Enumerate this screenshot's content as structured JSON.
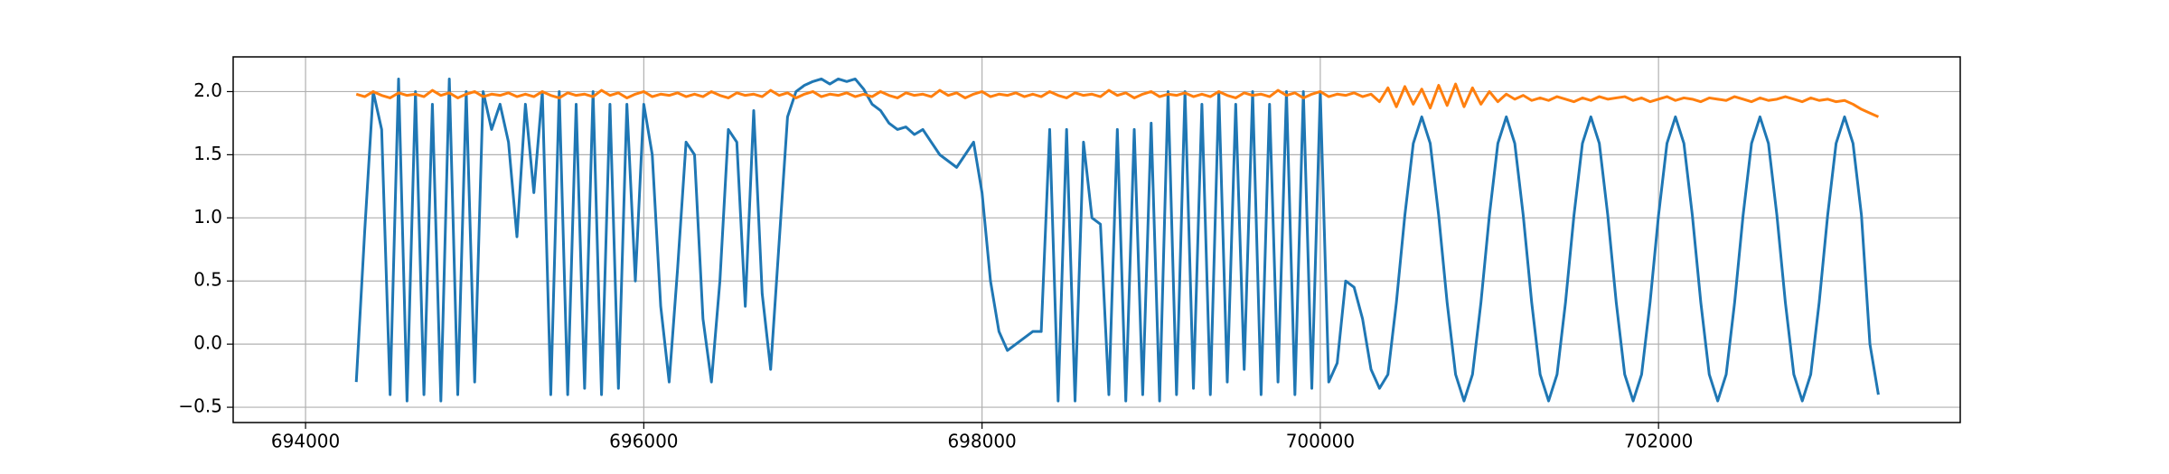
{
  "chart_data": {
    "type": "line",
    "x": [
      694300,
      694350,
      694400,
      694450,
      694500,
      694550,
      694600,
      694650,
      694700,
      694750,
      694800,
      694850,
      694900,
      694950,
      695000,
      695050,
      695100,
      695150,
      695200,
      695250,
      695300,
      695350,
      695400,
      695450,
      695500,
      695550,
      695600,
      695650,
      695700,
      695750,
      695800,
      695850,
      695900,
      695950,
      696000,
      696050,
      696100,
      696150,
      696200,
      696250,
      696300,
      696350,
      696400,
      696450,
      696500,
      696550,
      696600,
      696650,
      696700,
      696750,
      696800,
      696850,
      696900,
      696950,
      697000,
      697050,
      697100,
      697150,
      697200,
      697250,
      697300,
      697350,
      697400,
      697450,
      697500,
      697550,
      697600,
      697650,
      697700,
      697750,
      697800,
      697850,
      697900,
      697950,
      698000,
      698050,
      698100,
      698150,
      698200,
      698250,
      698300,
      698350,
      698400,
      698450,
      698500,
      698550,
      698600,
      698650,
      698700,
      698750,
      698800,
      698850,
      698900,
      698950,
      699000,
      699050,
      699100,
      699150,
      699200,
      699250,
      699300,
      699350,
      699400,
      699450,
      699500,
      699550,
      699600,
      699650,
      699700,
      699750,
      699800,
      699850,
      699900,
      699950,
      700000,
      700050,
      700100,
      700150,
      700200,
      700250,
      700300,
      700350,
      700400,
      700450,
      700500,
      700550,
      700600,
      700650,
      700700,
      700750,
      700800,
      700850,
      700900,
      700950,
      701000,
      701050,
      701100,
      701150,
      701200,
      701250,
      701300,
      701350,
      701400,
      701450,
      701500,
      701550,
      701600,
      701650,
      701700,
      701750,
      701800,
      701850,
      701900,
      701950,
      702000,
      702050,
      702100,
      702150,
      702200,
      702250,
      702300,
      702350,
      702400,
      702450,
      702500,
      702550,
      702600,
      702650,
      702700,
      702750,
      702800,
      702850,
      702900,
      702950,
      703000,
      703050,
      703100,
      703150,
      703200,
      703250,
      703300
    ],
    "series": [
      {
        "color": "#1f77b4",
        "values": [
          -0.3,
          0.9,
          2.0,
          1.7,
          -0.4,
          2.1,
          -0.45,
          2.0,
          -0.4,
          1.9,
          -0.45,
          2.1,
          -0.4,
          2.0,
          -0.3,
          2.0,
          1.7,
          1.9,
          1.6,
          0.85,
          1.9,
          1.2,
          2.0,
          -0.4,
          2.0,
          -0.4,
          1.9,
          -0.35,
          2.0,
          -0.4,
          1.9,
          -0.35,
          1.9,
          0.5,
          1.9,
          1.5,
          0.3,
          -0.3,
          0.6,
          1.6,
          1.5,
          0.2,
          -0.3,
          0.5,
          1.7,
          1.6,
          0.3,
          1.85,
          0.4,
          -0.2,
          0.8,
          1.8,
          2.0,
          2.05,
          2.08,
          2.1,
          2.06,
          2.1,
          2.08,
          2.1,
          2.02,
          1.9,
          1.85,
          1.75,
          1.7,
          1.72,
          1.66,
          1.7,
          1.6,
          1.5,
          1.45,
          1.4,
          1.5,
          1.6,
          1.2,
          0.5,
          0.1,
          -0.05,
          0.0,
          0.05,
          0.1,
          0.1,
          1.7,
          -0.45,
          1.7,
          -0.45,
          1.6,
          1.0,
          0.95,
          -0.4,
          1.7,
          -0.45,
          1.7,
          -0.4,
          1.75,
          -0.45,
          2.0,
          -0.4,
          2.0,
          -0.35,
          1.9,
          -0.4,
          2.0,
          -0.3,
          1.9,
          -0.2,
          2.0,
          -0.4,
          1.9,
          -0.3,
          2.0,
          -0.4,
          2.0,
          -0.35,
          2.0,
          -0.3,
          -0.15,
          0.5,
          0.45,
          0.2,
          -0.2,
          -0.35,
          -0.24,
          0.33,
          1.02,
          1.59,
          1.8,
          1.59,
          1.02,
          0.33,
          -0.24,
          -0.45,
          -0.24,
          0.33,
          1.02,
          1.59,
          1.8,
          1.59,
          1.02,
          0.33,
          -0.24,
          -0.45,
          -0.24,
          0.33,
          1.02,
          1.59,
          1.8,
          1.59,
          1.02,
          0.33,
          -0.24,
          -0.45,
          -0.24,
          0.33,
          1.02,
          1.59,
          1.8,
          1.59,
          1.02,
          0.33,
          -0.24,
          -0.45,
          -0.24,
          0.33,
          1.02,
          1.59,
          1.8,
          1.59,
          1.02,
          0.33,
          -0.24,
          -0.45,
          -0.24,
          0.33,
          1.02,
          1.59,
          1.8,
          1.59,
          1.02,
          0.0,
          -0.4
        ]
      },
      {
        "color": "#ff7f0e",
        "values": [
          1.98,
          1.96,
          2.0,
          1.97,
          1.95,
          1.99,
          1.97,
          1.98,
          1.96,
          2.01,
          1.97,
          1.99,
          1.95,
          1.98,
          2.0,
          1.96,
          1.98,
          1.97,
          1.99,
          1.96,
          1.98,
          1.96,
          2.0,
          1.97,
          1.95,
          1.99,
          1.97,
          1.98,
          1.96,
          2.01,
          1.97,
          1.99,
          1.95,
          1.98,
          2.0,
          1.96,
          1.98,
          1.97,
          1.99,
          1.96,
          1.98,
          1.96,
          2.0,
          1.97,
          1.95,
          1.99,
          1.97,
          1.98,
          1.96,
          2.01,
          1.97,
          1.99,
          1.95,
          1.98,
          2.0,
          1.96,
          1.98,
          1.97,
          1.99,
          1.96,
          1.98,
          1.96,
          2.0,
          1.97,
          1.95,
          1.99,
          1.97,
          1.98,
          1.96,
          2.01,
          1.97,
          1.99,
          1.95,
          1.98,
          2.0,
          1.96,
          1.98,
          1.97,
          1.99,
          1.96,
          1.98,
          1.96,
          2.0,
          1.97,
          1.95,
          1.99,
          1.97,
          1.98,
          1.96,
          2.01,
          1.97,
          1.99,
          1.95,
          1.98,
          2.0,
          1.96,
          1.98,
          1.97,
          1.99,
          1.96,
          1.98,
          1.96,
          2.0,
          1.97,
          1.95,
          1.99,
          1.97,
          1.98,
          1.96,
          2.01,
          1.97,
          1.99,
          1.95,
          1.98,
          2.0,
          1.96,
          1.98,
          1.97,
          1.99,
          1.96,
          1.98,
          1.92,
          2.03,
          1.88,
          2.04,
          1.9,
          2.02,
          1.87,
          2.05,
          1.89,
          2.06,
          1.88,
          2.03,
          1.9,
          2.0,
          1.92,
          1.98,
          1.94,
          1.97,
          1.93,
          1.95,
          1.93,
          1.96,
          1.94,
          1.92,
          1.95,
          1.93,
          1.96,
          1.94,
          1.95,
          1.96,
          1.93,
          1.95,
          1.92,
          1.94,
          1.96,
          1.93,
          1.95,
          1.94,
          1.92,
          1.95,
          1.94,
          1.93,
          1.96,
          1.94,
          1.92,
          1.95,
          1.93,
          1.94,
          1.96,
          1.94,
          1.92,
          1.95,
          1.93,
          1.94,
          1.92,
          1.93,
          1.9,
          1.86,
          1.83,
          1.8
        ]
      }
    ],
    "xlim": [
      693572,
      703784
    ],
    "ylim": [
      -0.621,
      2.275
    ],
    "xticks": [
      694000,
      696000,
      698000,
      700000,
      702000
    ],
    "yticks": [
      {
        "value": -0.5,
        "label": "−0.5"
      },
      {
        "value": 0,
        "label": "0.0"
      },
      0.5,
      {
        "value": 1,
        "label": "1.0"
      },
      1.5,
      {
        "value": 2,
        "label": "2.0"
      }
    ],
    "grid": true
  }
}
